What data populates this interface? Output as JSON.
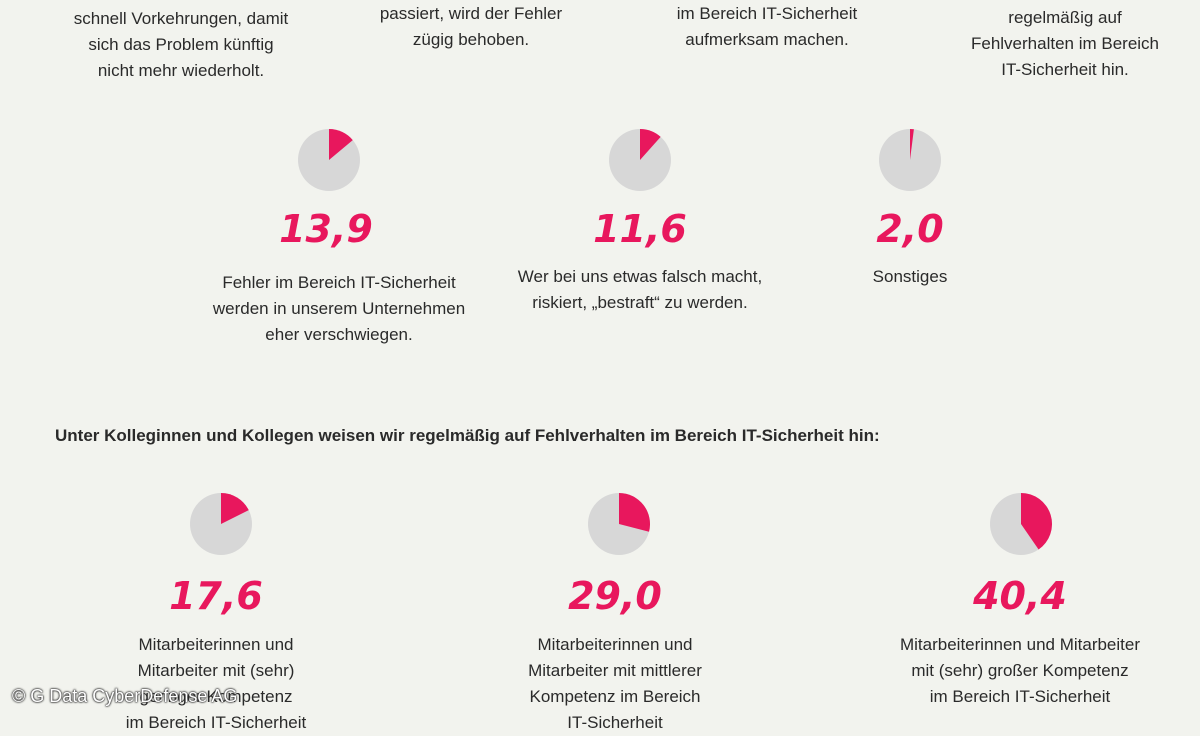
{
  "colors": {
    "accent": "#e8175d",
    "pie_bg": "#d7d7d7",
    "background": "#f2f3ee"
  },
  "top_texts": [
    {
      "lines": [
        "schnell Vorkehrungen, damit",
        "sich das Problem künftig",
        "nicht mehr wiederholt."
      ]
    },
    {
      "lines": [
        "passiert, wird der Fehler",
        "zügig behoben."
      ]
    },
    {
      "lines": [
        "im Bereich IT-Sicherheit",
        "aufmerksam machen."
      ]
    },
    {
      "lines": [
        "regelmäßig auf",
        "Fehlverhalten im Bereich",
        "IT-Sicherheit hin."
      ]
    }
  ],
  "section2": {
    "heading": "Unter Kolleginnen und Kollegen weisen wir regelmäßig auf Fehlverhalten im Bereich IT-Sicherheit hin:"
  },
  "copyright": "© G Data CyberDefense AG",
  "chart_data": [
    {
      "type": "pie",
      "items": [
        {
          "value": 13.9,
          "label": "13,9",
          "desc": [
            "Fehler im Bereich IT-Sicherheit",
            "werden in unserem Unternehmen",
            "eher verschwiegen."
          ]
        },
        {
          "value": 11.6,
          "label": "11,6",
          "desc": [
            "Wer bei uns etwas falsch macht,",
            "riskiert, „bestraft“ zu werden."
          ]
        },
        {
          "value": 2.0,
          "label": "2,0",
          "desc": [
            "Sonstiges"
          ]
        }
      ]
    },
    {
      "type": "pie",
      "items": [
        {
          "value": 17.6,
          "label": "17,6",
          "desc": [
            "Mitarbeiterinnen und",
            "Mitarbeiter mit (sehr)",
            "geringer Kompetenz",
            "im Bereich IT-Sicherheit"
          ]
        },
        {
          "value": 29.0,
          "label": "29,0",
          "desc": [
            "Mitarbeiterinnen und",
            "Mitarbeiter mit mittlerer",
            "Kompetenz im Bereich",
            "IT-Sicherheit"
          ]
        },
        {
          "value": 40.4,
          "label": "40,4",
          "desc": [
            "Mitarbeiterinnen und Mitarbeiter",
            "mit (sehr) großer Kompetenz",
            "im Bereich IT-Sicherheit"
          ]
        }
      ]
    }
  ]
}
